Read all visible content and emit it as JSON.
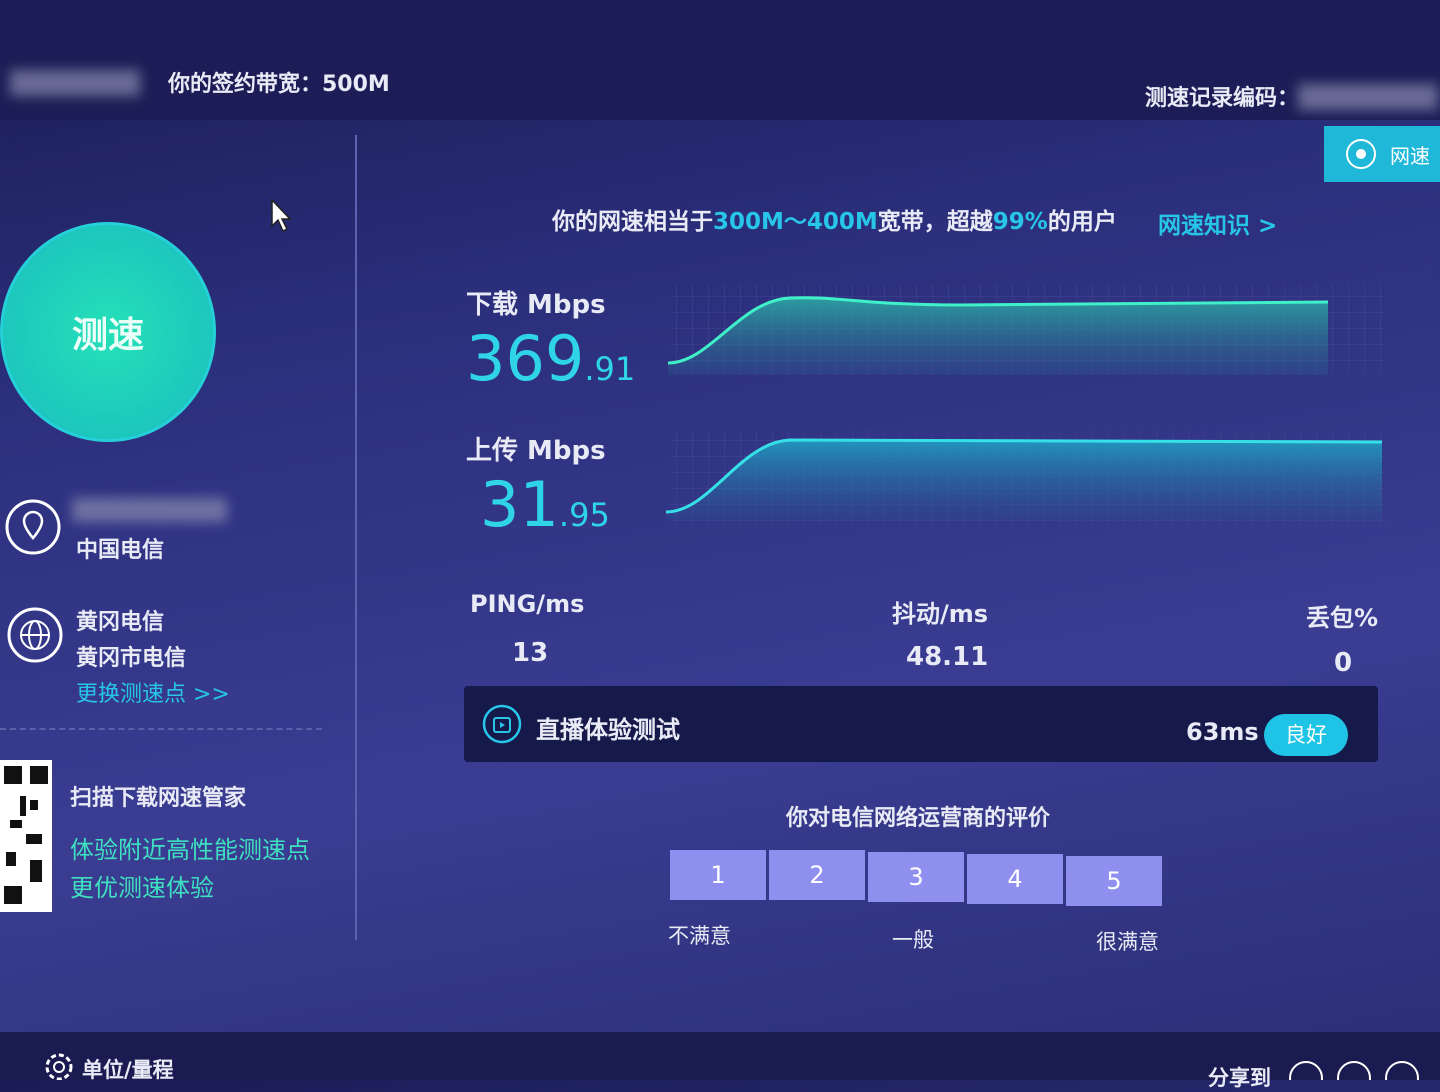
{
  "header": {
    "bandwidth": "你的签约带宽：500M",
    "record_code": "测速记录编码：",
    "top_button": "网速"
  },
  "left": {
    "start_button": "测速",
    "isp": "中国电信",
    "server_name": "黄冈电信",
    "server_detail": "黄冈市电信",
    "change_server": "更换测速点 >>",
    "qr_title": "扫描下载网速管家",
    "qr_line1": "体验附近高性能测速点",
    "qr_line2": "更优测速体验"
  },
  "summary": {
    "prefix": "你的网速相当于",
    "range": "300M～400M",
    "middle": "宽带，超越",
    "percent": "99%",
    "suffix": "的用户",
    "link": "网速知识 >"
  },
  "download": {
    "label": "下载 Mbps",
    "integer": "369",
    "decimal": ".91"
  },
  "upload": {
    "label": "上传 Mbps",
    "integer": "31",
    "decimal": ".95"
  },
  "stats": [
    {
      "label": "PING/ms",
      "value": "13"
    },
    {
      "label": "抖动/ms",
      "value": "48.11"
    },
    {
      "label": "丢包%",
      "value": "0"
    }
  ],
  "live": {
    "title": "直播体验测试",
    "latency": "63ms",
    "rating": "良好"
  },
  "rating": {
    "question": "你对电信网络运营商的评价",
    "options": [
      "1",
      "2",
      "3",
      "4",
      "5"
    ],
    "low": "不满意",
    "mid": "一般",
    "high": "很满意"
  },
  "footer": {
    "units": "单位/量程",
    "share": "分享到"
  }
}
